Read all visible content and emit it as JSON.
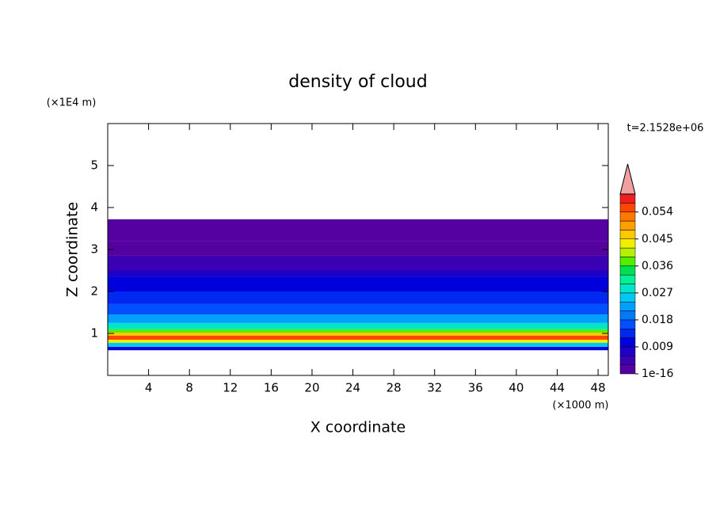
{
  "chart_data": {
    "type": "contour",
    "title": "density of cloud",
    "xlabel": "X coordinate",
    "ylabel": "Z coordinate",
    "x_unit": "(×1000 m)",
    "y_unit": "(×1E4 m)",
    "annotation": "t=2.1528e+06",
    "xlim": [
      0,
      49
    ],
    "ylim": [
      0,
      6
    ],
    "xticks": [
      4,
      8,
      12,
      16,
      20,
      24,
      28,
      32,
      36,
      40,
      44,
      48
    ],
    "yticks": [
      1,
      2,
      3,
      4,
      5
    ],
    "layers": [
      {
        "z": [
          0.6,
          0.68
        ],
        "value": 0.012
      },
      {
        "z": [
          0.68,
          0.78
        ],
        "value": 0.027
      },
      {
        "z": [
          0.78,
          0.85
        ],
        "value": 0.045
      },
      {
        "z": [
          0.85,
          0.95
        ],
        "value": 0.054
      },
      {
        "z": [
          0.95,
          1.02
        ],
        "value": 0.048
      },
      {
        "z": [
          1.02,
          1.1
        ],
        "value": 0.039
      },
      {
        "z": [
          1.1,
          1.25
        ],
        "value": 0.03
      },
      {
        "z": [
          1.25,
          1.45
        ],
        "value": 0.024
      },
      {
        "z": [
          1.45,
          1.7
        ],
        "value": 0.018
      },
      {
        "z": [
          1.7,
          2.0
        ],
        "value": 0.015
      },
      {
        "z": [
          2.0,
          2.35
        ],
        "value": 0.012
      },
      {
        "z": [
          2.35,
          2.5
        ],
        "value": 0.009
      },
      {
        "z": [
          2.5,
          2.85
        ],
        "value": 0.006
      },
      {
        "z": [
          2.85,
          3.2
        ],
        "value": 0.003
      },
      {
        "z": [
          3.2,
          3.72
        ],
        "value": 0.0015
      }
    ],
    "colorbar_lim": [
      1e-16,
      0.06
    ],
    "colorbar_ticks": [
      {
        "value": 1e-16,
        "label": "1e-16"
      },
      0.009,
      0.018,
      0.027,
      0.036,
      0.045,
      0.054
    ],
    "colors": [
      "#5500a0",
      "#3c00b4",
      "#1e00c8",
      "#0000dc",
      "#0028f0",
      "#0050ff",
      "#0078ff",
      "#00a0ff",
      "#00c8f0",
      "#00e6c8",
      "#00f096",
      "#00e050",
      "#50f000",
      "#b4f000",
      "#f0f000",
      "#ffc800",
      "#ffa000",
      "#ff7800",
      "#ff4600",
      "#f01e1e"
    ],
    "extend_color": "#f0a0a0"
  }
}
